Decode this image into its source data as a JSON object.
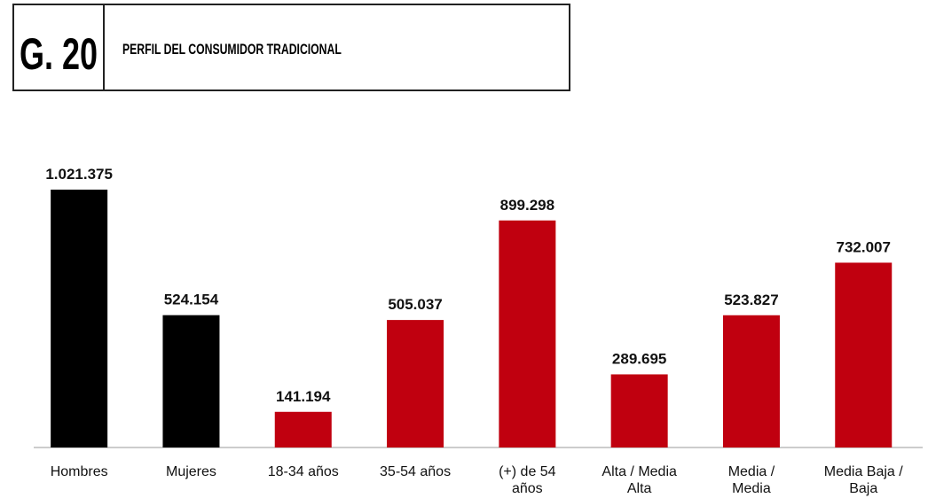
{
  "chart_data": {
    "type": "bar",
    "figure_label": "G. 20",
    "title": "PERFIL DEL CONSUMIDOR TRADICIONAL",
    "categories": [
      "Hombres",
      "Mujeres",
      "18-34 años",
      "35-54 años",
      "(+) de 54\naños",
      "Alta / Media\nAlta",
      "Media /\nMedia",
      "Media Baja /\nBaja"
    ],
    "values": [
      1021375,
      524154,
      141194,
      505037,
      899298,
      289695,
      523827,
      732007
    ],
    "value_labels": [
      "1.021.375",
      "524.154",
      "141.194",
      "505.037",
      "899.298",
      "289.695",
      "523.827",
      "732.007"
    ],
    "colors": [
      "#000000",
      "#000000",
      "#c0000f",
      "#c0000f",
      "#c0000f",
      "#c0000f",
      "#c0000f",
      "#c0000f"
    ]
  }
}
